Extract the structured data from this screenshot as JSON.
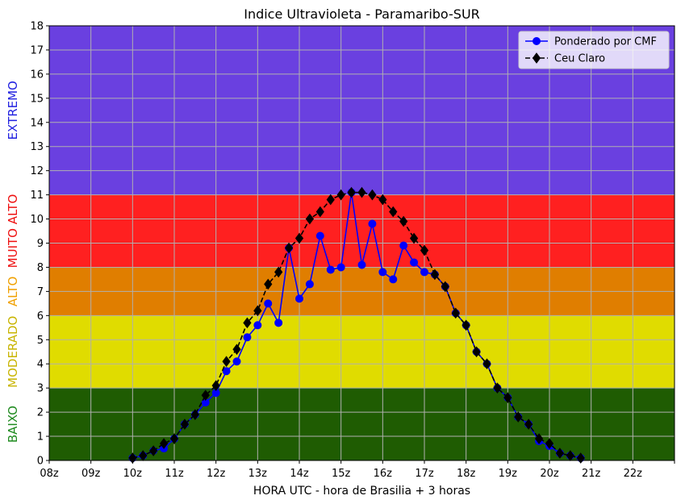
{
  "chart_data": {
    "type": "line",
    "title": "Indice Ultravioleta - Paramaribo-SUR",
    "xlabel": "HORA UTC - hora de Brasilia + 3 horas",
    "ylabel": "",
    "xlim": [
      8,
      23
    ],
    "ylim": [
      0,
      18
    ],
    "x_ticks": [
      8,
      9,
      10,
      11,
      12,
      13,
      14,
      15,
      16,
      17,
      18,
      19,
      20,
      21,
      22,
      23
    ],
    "x_tick_labels": [
      "08z",
      "09z",
      "10z",
      "11z",
      "12z",
      "13z",
      "14z",
      "15z",
      "16z",
      "17z",
      "18z",
      "19z",
      "20z",
      "21z",
      "22z",
      ""
    ],
    "y_ticks": [
      0,
      1,
      2,
      3,
      4,
      5,
      6,
      7,
      8,
      9,
      10,
      11,
      12,
      13,
      14,
      15,
      16,
      17,
      18
    ],
    "grid": true,
    "legend_position": "top-right",
    "bands": [
      {
        "label": "BAIXO",
        "from": 0,
        "to": 3,
        "color": "#1f5c02",
        "label_color": "#1e8a1e"
      },
      {
        "label": "MODERADO",
        "from": 3,
        "to": 6,
        "color": "#e0dc00",
        "label_color": "#c8b400"
      },
      {
        "label": "ALTO",
        "from": 6,
        "to": 8,
        "color": "#e07e00",
        "label_color": "#f0a000"
      },
      {
        "label": "MUITO ALTO",
        "from": 8,
        "to": 11,
        "color": "#ff2020",
        "label_color": "#ee1010"
      },
      {
        "label": "EXTREMO",
        "from": 11,
        "to": 18,
        "color": "#6a40e0",
        "label_color": "#2020e0"
      }
    ],
    "series": [
      {
        "name": "Ponderado por CMF",
        "color": "#0000ff",
        "marker": "circle",
        "line_style": "solid",
        "x": [
          10.0,
          10.25,
          10.5,
          10.75,
          11.0,
          11.25,
          11.5,
          11.75,
          12.0,
          12.25,
          12.5,
          12.75,
          13.0,
          13.25,
          13.5,
          13.75,
          14.0,
          14.25,
          14.5,
          14.75,
          15.0,
          15.25,
          15.5,
          15.75,
          16.0,
          16.25,
          16.5,
          16.75,
          17.0,
          17.25,
          17.5,
          17.75,
          18.0,
          18.25,
          18.5,
          18.75,
          19.0,
          19.25,
          19.5,
          19.75,
          20.0,
          20.25,
          20.5,
          20.75
        ],
        "y": [
          0.1,
          0.2,
          0.4,
          0.5,
          0.9,
          1.5,
          1.9,
          2.4,
          2.8,
          3.7,
          4.1,
          5.1,
          5.6,
          6.5,
          5.7,
          8.8,
          6.7,
          7.3,
          9.3,
          7.9,
          8.0,
          11.1,
          8.1,
          9.8,
          7.8,
          7.5,
          8.9,
          8.2,
          7.8,
          7.7,
          7.2,
          6.1,
          5.6,
          4.5,
          4.0,
          3.0,
          2.6,
          1.8,
          1.5,
          0.8,
          0.6,
          0.3,
          0.2,
          0.1
        ]
      },
      {
        "name": "Ceu Claro",
        "color": "#000000",
        "marker": "diamond",
        "line_style": "dashed",
        "x": [
          10.0,
          10.25,
          10.5,
          10.75,
          11.0,
          11.25,
          11.5,
          11.75,
          12.0,
          12.25,
          12.5,
          12.75,
          13.0,
          13.25,
          13.5,
          13.75,
          14.0,
          14.25,
          14.5,
          14.75,
          15.0,
          15.25,
          15.5,
          15.75,
          16.0,
          16.25,
          16.5,
          16.75,
          17.0,
          17.25,
          17.5,
          17.75,
          18.0,
          18.25,
          18.5,
          18.75,
          19.0,
          19.25,
          19.5,
          19.75,
          20.0,
          20.25,
          20.5,
          20.75
        ],
        "y": [
          0.1,
          0.2,
          0.4,
          0.7,
          0.9,
          1.5,
          1.9,
          2.7,
          3.1,
          4.1,
          4.6,
          5.7,
          6.2,
          7.3,
          7.8,
          8.8,
          9.2,
          10.0,
          10.3,
          10.8,
          11.0,
          11.1,
          11.1,
          11.0,
          10.8,
          10.3,
          9.9,
          9.2,
          8.7,
          7.7,
          7.2,
          6.1,
          5.6,
          4.5,
          4.0,
          3.0,
          2.6,
          1.8,
          1.5,
          0.9,
          0.7,
          0.3,
          0.2,
          0.1
        ]
      }
    ]
  }
}
